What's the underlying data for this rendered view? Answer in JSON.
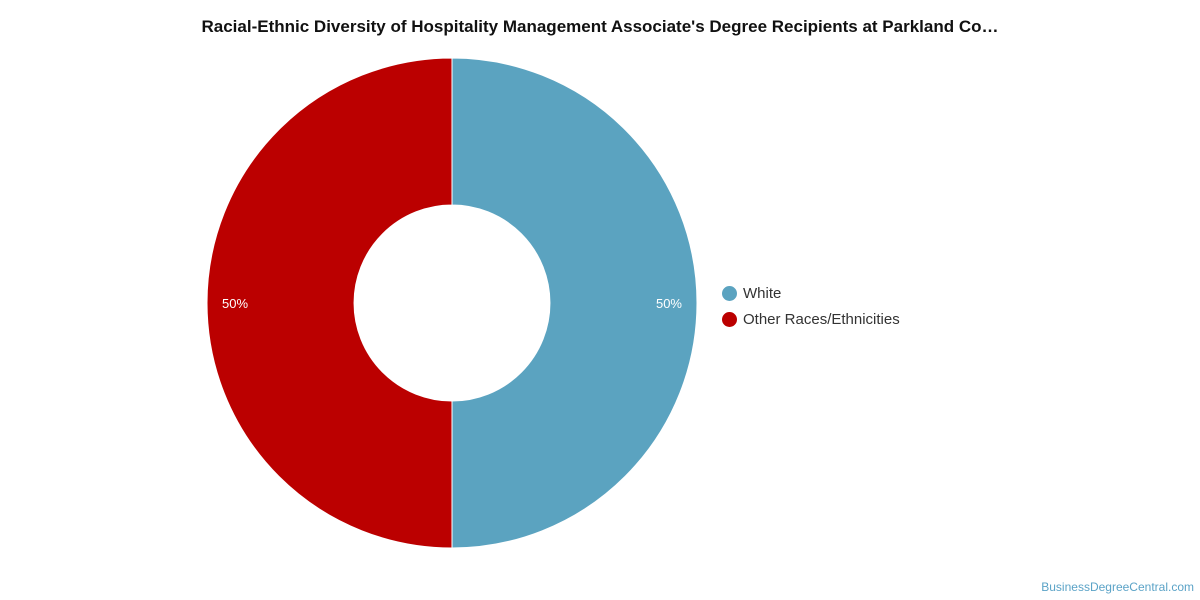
{
  "chart_data": {
    "type": "pie",
    "subtype": "donut",
    "title": "Racial-Ethnic Diversity of Hospitality Management Associate's Degree Recipients at Parkland Co…",
    "categories": [
      "White",
      "Other Races/Ethnicities"
    ],
    "values": [
      50,
      50
    ],
    "data_labels": [
      "50%",
      "50%"
    ],
    "colors": [
      "#5ba3c0",
      "#bb0000"
    ],
    "legend_position": "right",
    "legend": [
      {
        "label": "White",
        "color": "#5ba3c0"
      },
      {
        "label": "Other Races/Ethnicities",
        "color": "#bb0000"
      }
    ]
  },
  "watermark": "BusinessDegreeCentral.com"
}
